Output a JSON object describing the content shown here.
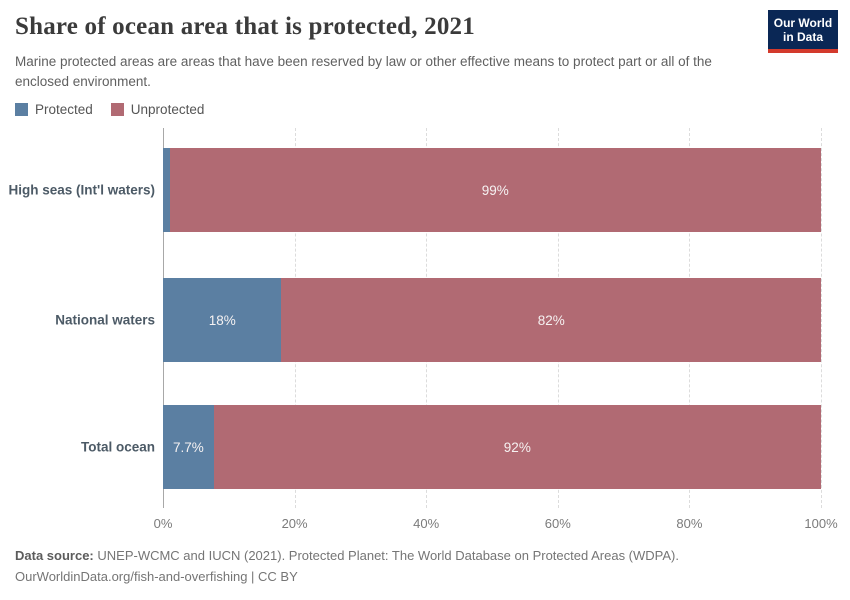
{
  "header": {
    "title": "Share of ocean area that is protected, 2021",
    "subtitle": "Marine protected areas are areas that have been reserved by law or other effective means to protect part or all of the enclosed environment.",
    "logo_line1": "Our World",
    "logo_line2": "in Data"
  },
  "legend": [
    {
      "label": "Protected",
      "color": "#5b7fa2"
    },
    {
      "label": "Unprotected",
      "color": "#b16a73"
    }
  ],
  "chart_data": {
    "type": "bar",
    "orientation": "horizontal",
    "stacked": true,
    "title": "Share of ocean area that is protected, 2021",
    "categories": [
      "High seas (Int'l waters)",
      "National waters",
      "Total ocean"
    ],
    "series": [
      {
        "name": "Protected",
        "color": "#5b7fa2",
        "values": [
          1,
          18,
          7.7
        ],
        "labels": [
          "",
          "18%",
          "7.7%"
        ]
      },
      {
        "name": "Unprotected",
        "color": "#b16a73",
        "values": [
          99,
          82,
          92.3
        ],
        "labels": [
          "99%",
          "82%",
          "92%"
        ]
      }
    ],
    "xlabel": "",
    "ylabel": "",
    "xlim": [
      0,
      100
    ],
    "x_ticks": [
      "0%",
      "20%",
      "40%",
      "60%",
      "80%",
      "100%"
    ],
    "grid": "vertical-dashed",
    "legend_position": "top-left"
  },
  "footer": {
    "source_label": "Data source:",
    "source_text": "UNEP-WCMC and IUCN (2021). Protected Planet: The World Database on Protected Areas (WDPA).",
    "license_link": "OurWorldinData.org/fish-and-overfishing",
    "license_suffix": " | CC BY"
  }
}
